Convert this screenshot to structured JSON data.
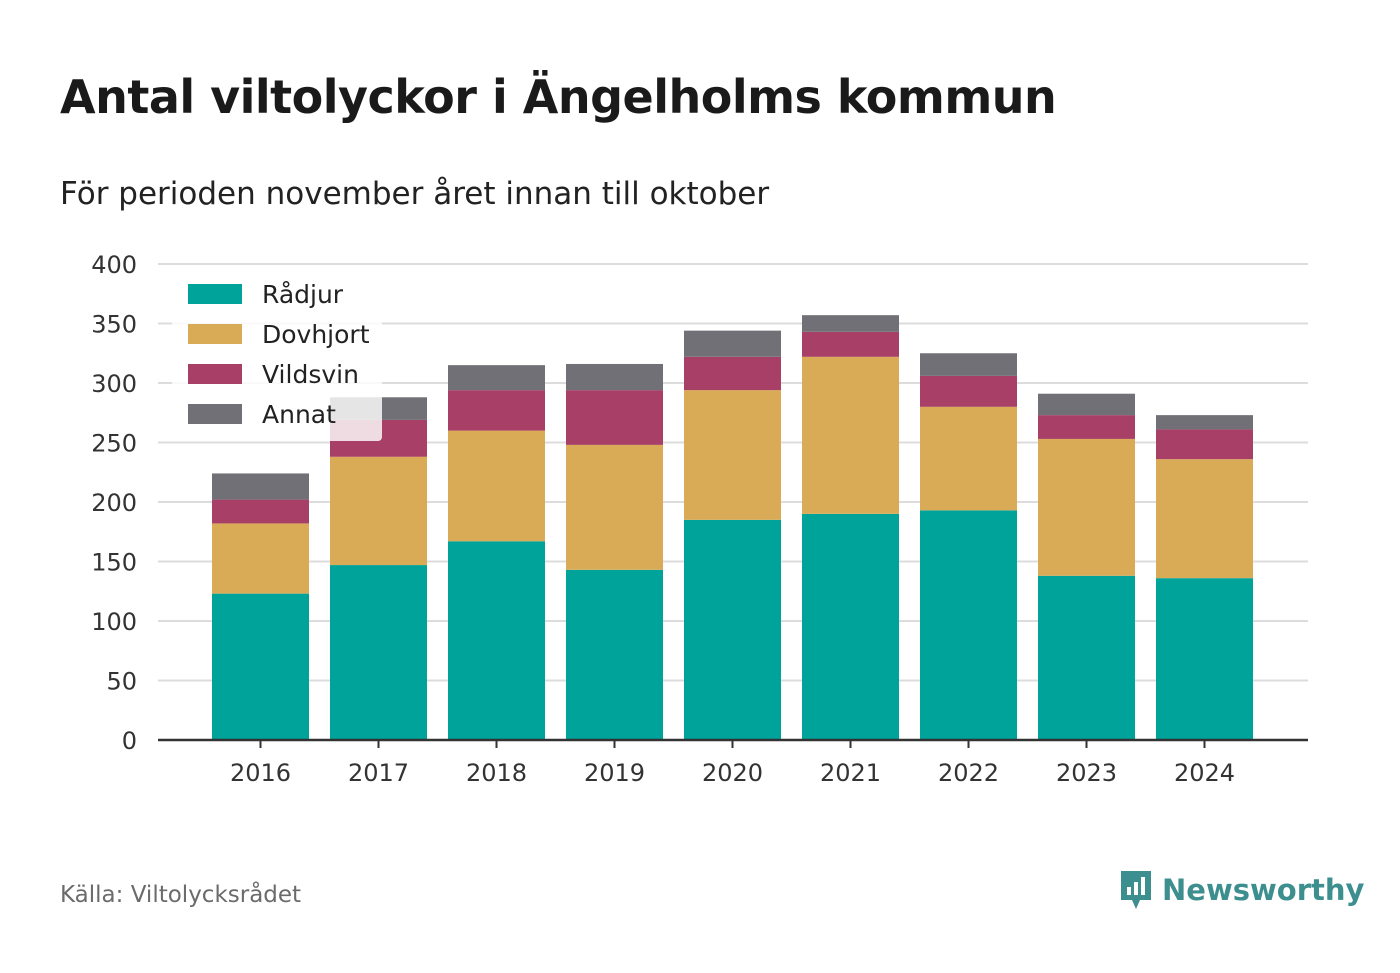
{
  "title": "Antal viltolyckor i Ängelholms kommun",
  "subtitle": "För perioden november året innan till oktober",
  "source": "Källa: Viltolycksrådet",
  "brand": {
    "name": "Newsworthy",
    "icon": "newsworthy-logo-icon",
    "color": "#3d8f8f"
  },
  "chart_data": {
    "type": "bar",
    "stacked": true,
    "categories": [
      "2016",
      "2017",
      "2018",
      "2019",
      "2020",
      "2021",
      "2022",
      "2023",
      "2024"
    ],
    "series": [
      {
        "name": "Rådjur",
        "color": "#00a39a",
        "values": [
          123,
          147,
          167,
          143,
          185,
          190,
          193,
          138,
          136
        ]
      },
      {
        "name": "Dovhjort",
        "color": "#d9ab57",
        "values": [
          59,
          91,
          93,
          105,
          109,
          132,
          87,
          115,
          100
        ]
      },
      {
        "name": "Vildsvin",
        "color": "#a83f66",
        "values": [
          20,
          31,
          34,
          46,
          28,
          21,
          26,
          20,
          25
        ]
      },
      {
        "name": "Annat",
        "color": "#707076",
        "values": [
          22,
          19,
          21,
          22,
          22,
          14,
          19,
          18,
          12
        ]
      }
    ],
    "ylim": [
      0,
      400
    ],
    "yticks": [
      "0",
      "50",
      "100",
      "150",
      "200",
      "250",
      "300",
      "350",
      "400"
    ],
    "grid": true,
    "legend_position": "top-left"
  }
}
